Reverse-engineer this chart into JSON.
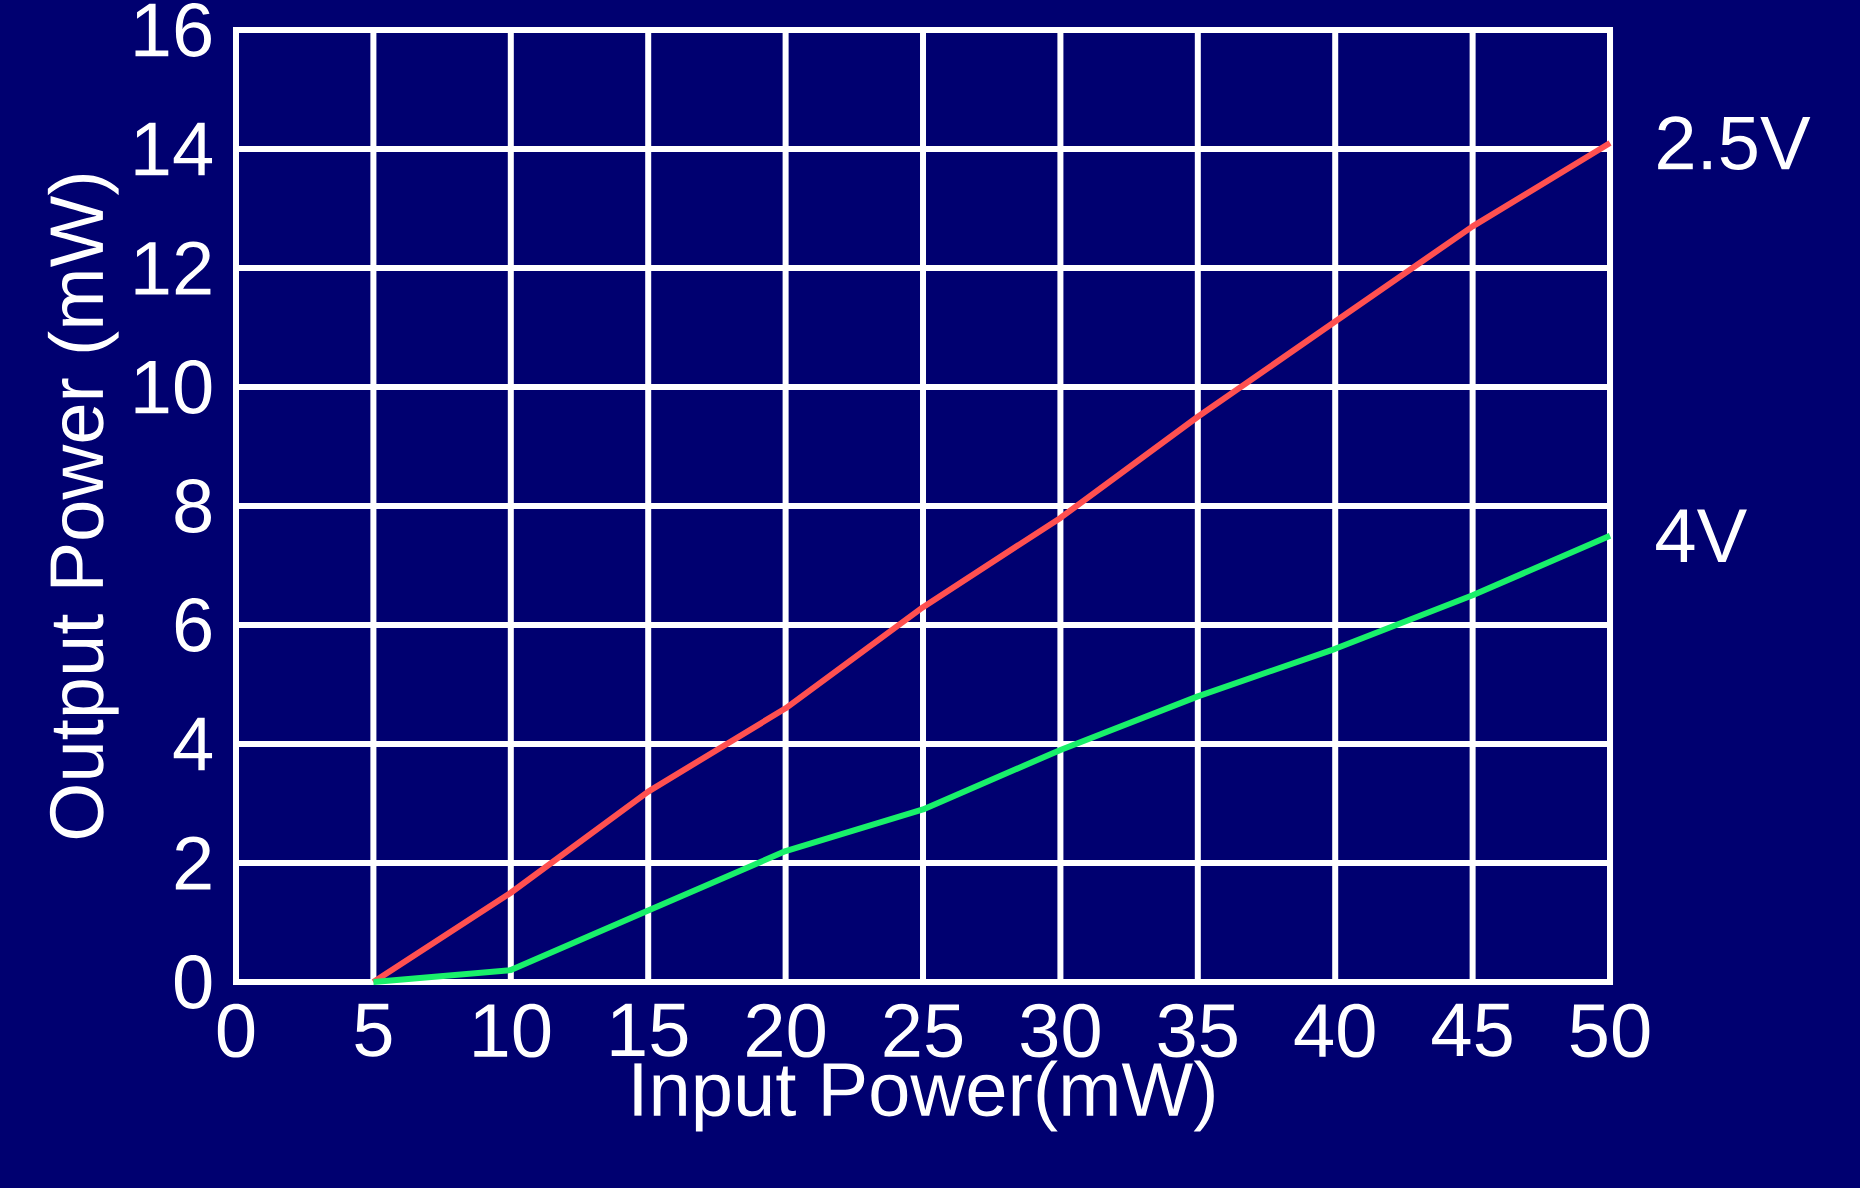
{
  "chart_data": {
    "type": "line",
    "xlabel": "Input Power(mW)",
    "ylabel": "Output Power (mW)",
    "x": [
      5,
      10,
      15,
      20,
      25,
      30,
      35,
      40,
      45,
      50
    ],
    "series": [
      {
        "name": "2.5V",
        "color": "#ff5050",
        "values": [
          0,
          1.5,
          3.2,
          4.6,
          6.3,
          7.8,
          9.5,
          11.1,
          12.7,
          14.1
        ]
      },
      {
        "name": "4V",
        "color": "#19f06a",
        "values": [
          0,
          0.2,
          1.2,
          2.2,
          2.9,
          3.9,
          4.8,
          5.6,
          6.5,
          7.5
        ]
      }
    ],
    "xlim": [
      0,
      50
    ],
    "ylim": [
      0,
      16
    ],
    "xticks": [
      0,
      5,
      10,
      15,
      20,
      25,
      30,
      35,
      40,
      45,
      50
    ],
    "yticks": [
      0,
      2,
      4,
      6,
      8,
      10,
      12,
      14,
      16
    ],
    "grid": true,
    "legend": false,
    "marker": "none",
    "line_style": "solid"
  }
}
